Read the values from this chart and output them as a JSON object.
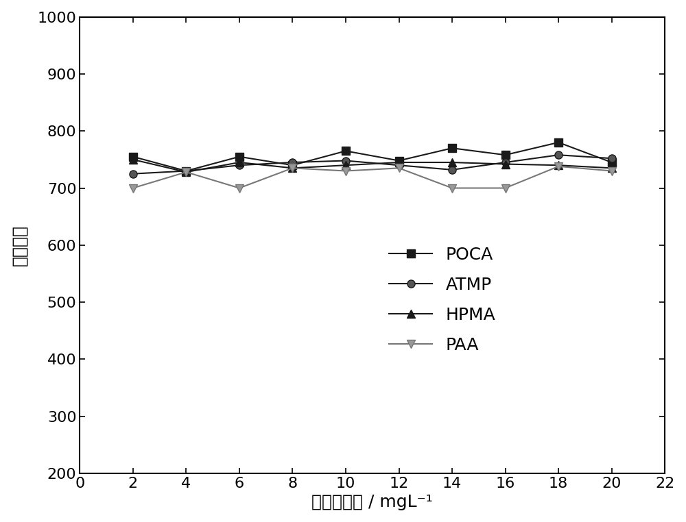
{
  "x": [
    2,
    4,
    6,
    8,
    10,
    12,
    14,
    16,
    18,
    20
  ],
  "POCA": [
    755,
    730,
    755,
    740,
    765,
    748,
    770,
    758,
    780,
    745
  ],
  "ATMP": [
    725,
    730,
    740,
    745,
    748,
    740,
    732,
    745,
    758,
    752
  ],
  "HPMA": [
    750,
    728,
    745,
    735,
    740,
    745,
    745,
    742,
    740,
    735
  ],
  "PAA": [
    700,
    728,
    700,
    735,
    730,
    735,
    700,
    700,
    738,
    730
  ],
  "xlabel": "药剂的浓度 / mgL⁻¹",
  "ylabel": "荧光强度",
  "xlim": [
    0,
    22
  ],
  "ylim": [
    200,
    1000
  ],
  "yticks": [
    200,
    300,
    400,
    500,
    600,
    700,
    800,
    900,
    1000
  ],
  "xticks": [
    0,
    2,
    4,
    6,
    8,
    10,
    12,
    14,
    16,
    18,
    20,
    22
  ],
  "legend_labels": [
    "POCA",
    "ATMP",
    "HPMA",
    "PAA"
  ],
  "line_color": "#1a1a1a",
  "background_color": "#ffffff",
  "label_fontsize": 18,
  "tick_fontsize": 16,
  "legend_fontsize": 18
}
